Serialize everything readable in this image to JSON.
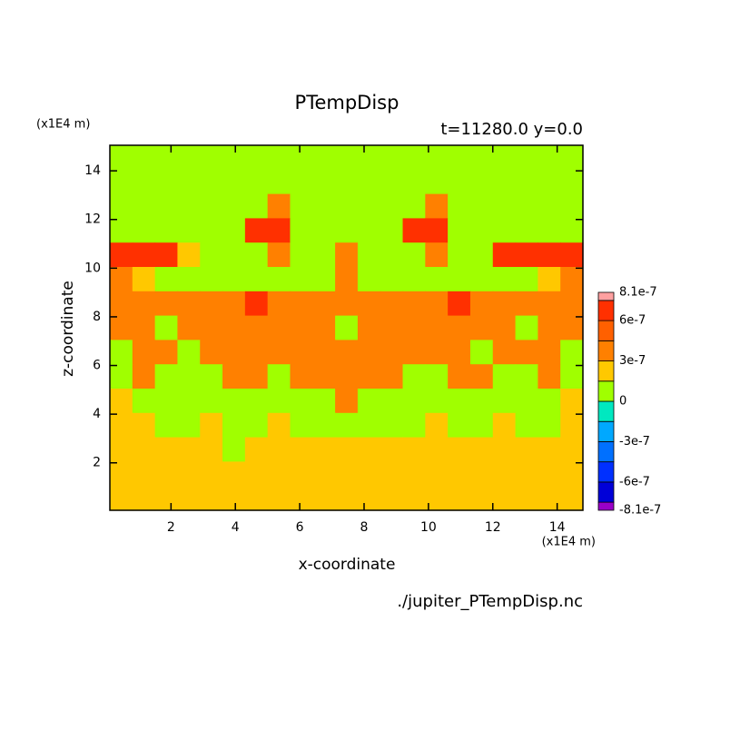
{
  "chart_data": {
    "type": "contour",
    "title": "PTempDisp",
    "subtitle": "t=11280.0 y=0.0",
    "x_label": "x-coordinate",
    "y_label": "z-coordinate",
    "x_unit": "(x1E4 m)",
    "y_unit": "(x1E4 m)",
    "footer": "./jupiter_PTempDisp.nc",
    "xlim": [
      0.1,
      14.8
    ],
    "ylim": [
      0.05,
      15.05
    ],
    "xticks": [
      2,
      4,
      6,
      8,
      10,
      12,
      14
    ],
    "yticks": [
      2,
      4,
      6,
      8,
      10,
      12,
      14
    ],
    "x": [
      0.45,
      1.15,
      1.85,
      2.55,
      3.25,
      3.95,
      4.65,
      5.35,
      6.05,
      6.75,
      7.45,
      8.15,
      8.85,
      9.55,
      10.25,
      10.95,
      11.65,
      12.35,
      13.05,
      13.75,
      14.45
    ],
    "y": [
      14.55,
      13.55,
      12.55,
      11.55,
      10.55,
      9.55,
      8.55,
      7.55,
      6.55,
      5.55,
      4.55,
      3.55,
      2.55,
      1.55,
      0.55
    ],
    "levels": [
      {
        "value": -8.1e-07,
        "label": "-8.1e-7"
      },
      -7.5e-07,
      {
        "value": -6e-07,
        "label": "-6e-7"
      },
      -4.5e-07,
      {
        "value": -3e-07,
        "label": "-3e-7"
      },
      -1.5e-07,
      0,
      1.5e-07,
      {
        "value": 3e-07,
        "label": "3e-7"
      },
      4.5e-07,
      {
        "value": 6e-07,
        "label": "6e-7"
      },
      7.5e-07,
      {
        "value": 8.1e-07,
        "label": "8.1e-7"
      }
    ],
    "labeled_levels": [
      0,
      2,
      4,
      6,
      8,
      10,
      12
    ],
    "colors": [
      "#9a00c8",
      "#0000d8",
      "#0030ff",
      "#0070ff",
      "#00a8ff",
      "#00e8c0",
      "#a0ff00",
      "#ffc800",
      "#ff8000",
      "#ff6000",
      "#ff3000",
      "#ffa0a0"
    ],
    "values": [
      [
        7e-08,
        7e-08,
        7e-08,
        7e-08,
        7e-08,
        7e-08,
        7e-08,
        7e-08,
        7e-08,
        7e-08,
        7e-08,
        7e-08,
        7e-08,
        7e-08,
        7e-08,
        7e-08,
        7e-08,
        7e-08,
        7e-08,
        7e-08,
        7e-08
      ],
      [
        7e-08,
        7e-08,
        7e-08,
        7e-08,
        7e-08,
        7e-08,
        7e-08,
        7e-08,
        7e-08,
        7e-08,
        7e-08,
        7e-08,
        7e-08,
        7e-08,
        7e-08,
        7e-08,
        7e-08,
        7e-08,
        7e-08,
        7e-08,
        7e-08
      ],
      [
        7e-08,
        7e-08,
        7e-08,
        7e-08,
        7e-08,
        7e-08,
        7e-08,
        3.8e-07,
        7e-08,
        7e-08,
        7e-08,
        7e-08,
        7e-08,
        7e-08,
        3.8e-07,
        7e-08,
        7e-08,
        7e-08,
        7e-08,
        7e-08,
        7e-08
      ],
      [
        7e-08,
        7e-08,
        7e-08,
        7e-08,
        7e-08,
        7e-08,
        6.5e-07,
        6.5e-07,
        7e-08,
        7e-08,
        7e-08,
        7e-08,
        7e-08,
        6.5e-07,
        6.5e-07,
        7e-08,
        7e-08,
        7e-08,
        7e-08,
        7e-08,
        7e-08
      ],
      [
        6.5e-07,
        6.5e-07,
        6.5e-07,
        2.2e-07,
        7e-08,
        7e-08,
        7e-08,
        3.8e-07,
        7e-08,
        7e-08,
        3.8e-07,
        7e-08,
        7e-08,
        7e-08,
        3.8e-07,
        7e-08,
        7e-08,
        6.5e-07,
        6.5e-07,
        6.5e-07,
        6.5e-07
      ],
      [
        3.8e-07,
        2.2e-07,
        7e-08,
        7e-08,
        7e-08,
        7e-08,
        7e-08,
        7e-08,
        7e-08,
        7e-08,
        3.8e-07,
        7e-08,
        7e-08,
        7e-08,
        7e-08,
        7e-08,
        7e-08,
        7e-08,
        7e-08,
        2.2e-07,
        3.8e-07
      ],
      [
        3.8e-07,
        3.8e-07,
        3.8e-07,
        3.8e-07,
        3.8e-07,
        3.8e-07,
        6.5e-07,
        3.8e-07,
        3.8e-07,
        3.8e-07,
        3.8e-07,
        3.8e-07,
        3.8e-07,
        3.8e-07,
        3.8e-07,
        6.5e-07,
        3.8e-07,
        3.8e-07,
        3.8e-07,
        3.8e-07,
        3.8e-07
      ],
      [
        3.8e-07,
        3.8e-07,
        7e-08,
        3.8e-07,
        3.8e-07,
        3.8e-07,
        3.8e-07,
        3.8e-07,
        3.8e-07,
        3.8e-07,
        7e-08,
        3.8e-07,
        3.8e-07,
        3.8e-07,
        3.8e-07,
        3.8e-07,
        3.8e-07,
        3.8e-07,
        7e-08,
        3.8e-07,
        3.8e-07
      ],
      [
        7e-08,
        3.8e-07,
        3.8e-07,
        7e-08,
        3.8e-07,
        3.8e-07,
        3.8e-07,
        3.8e-07,
        3.8e-07,
        3.8e-07,
        3.8e-07,
        3.8e-07,
        3.8e-07,
        3.8e-07,
        3.8e-07,
        3.8e-07,
        7e-08,
        3.8e-07,
        3.8e-07,
        3.8e-07,
        7e-08
      ],
      [
        7e-08,
        3.8e-07,
        7e-08,
        7e-08,
        7e-08,
        3.8e-07,
        3.8e-07,
        7e-08,
        3.8e-07,
        3.8e-07,
        3.8e-07,
        3.8e-07,
        3.8e-07,
        7e-08,
        7e-08,
        3.8e-07,
        3.8e-07,
        7e-08,
        7e-08,
        3.8e-07,
        7e-08
      ],
      [
        2.2e-07,
        7e-08,
        7e-08,
        7e-08,
        7e-08,
        7e-08,
        7e-08,
        7e-08,
        7e-08,
        7e-08,
        3.8e-07,
        7e-08,
        7e-08,
        7e-08,
        7e-08,
        7e-08,
        7e-08,
        7e-08,
        7e-08,
        7e-08,
        2.2e-07
      ],
      [
        2.2e-07,
        2.2e-07,
        7e-08,
        7e-08,
        2.2e-07,
        7e-08,
        7e-08,
        2.2e-07,
        7e-08,
        7e-08,
        7e-08,
        7e-08,
        7e-08,
        7e-08,
        2.2e-07,
        7e-08,
        7e-08,
        2.2e-07,
        7e-08,
        7e-08,
        2.2e-07
      ],
      [
        2.2e-07,
        2.2e-07,
        2.2e-07,
        2.2e-07,
        2.2e-07,
        7e-08,
        2.2e-07,
        2.2e-07,
        2.2e-07,
        2.2e-07,
        2.2e-07,
        2.2e-07,
        2.2e-07,
        2.2e-07,
        2.2e-07,
        2.2e-07,
        2.2e-07,
        2.2e-07,
        2.2e-07,
        2.2e-07,
        2.2e-07
      ],
      [
        2.2e-07,
        2.2e-07,
        2.2e-07,
        2.2e-07,
        2.2e-07,
        2.2e-07,
        2.2e-07,
        2.2e-07,
        2.2e-07,
        2.2e-07,
        2.2e-07,
        2.2e-07,
        2.2e-07,
        2.2e-07,
        2.2e-07,
        2.2e-07,
        2.2e-07,
        2.2e-07,
        2.2e-07,
        2.2e-07,
        2.2e-07
      ],
      [
        2.2e-07,
        2.2e-07,
        2.2e-07,
        2.2e-07,
        2.2e-07,
        2.2e-07,
        2.2e-07,
        2.2e-07,
        2.2e-07,
        2.2e-07,
        2.2e-07,
        2.2e-07,
        2.2e-07,
        2.2e-07,
        2.2e-07,
        2.2e-07,
        2.2e-07,
        2.2e-07,
        2.2e-07,
        2.2e-07,
        2.2e-07
      ]
    ]
  }
}
